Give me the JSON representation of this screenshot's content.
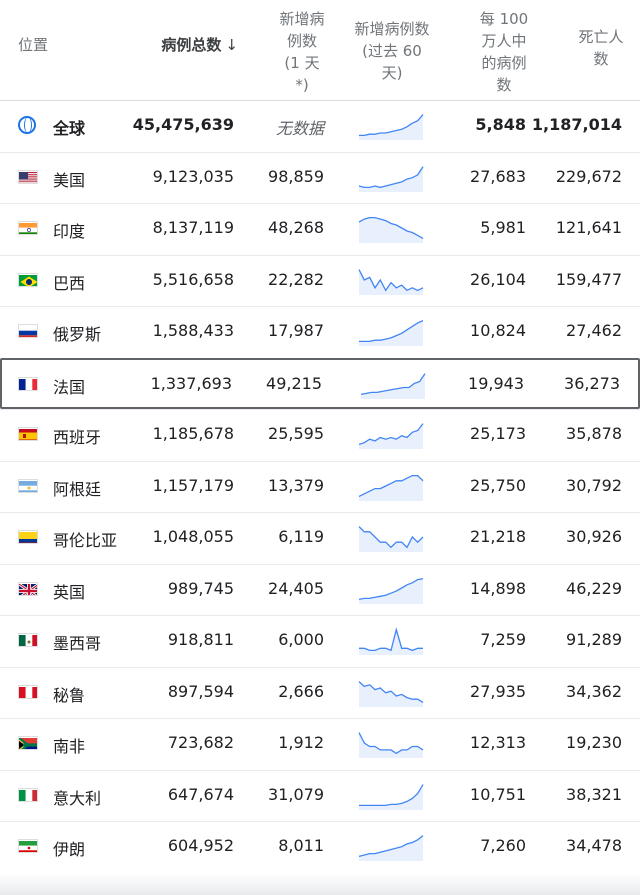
{
  "header": {
    "location": "位置",
    "total_cases": "病例总数",
    "sort_arrow": "↓",
    "new_cases": [
      "新增病",
      "例数",
      "(1 天",
      "*)"
    ],
    "trend": [
      "新增病例数",
      "(过去 60",
      "天)"
    ],
    "per_million": [
      "每 100",
      "万人中",
      "的病例",
      "数"
    ],
    "deaths": [
      "死亡人",
      "数"
    ]
  },
  "rows": [
    {
      "name": "全球",
      "flag": "globe-icon",
      "total": "45,475,639",
      "new": "无数据",
      "per_million": "5,848",
      "deaths": "1,187,014",
      "trend": [
        10,
        10,
        11,
        11,
        12,
        12,
        13,
        14,
        15,
        17,
        20,
        22,
        27
      ]
    },
    {
      "name": "美国",
      "flag": "us-flag-icon",
      "total": "9,123,035",
      "new": "98,859",
      "per_million": "27,683",
      "deaths": "229,672",
      "trend": [
        10,
        9,
        9,
        10,
        9,
        10,
        11,
        12,
        13,
        15,
        16,
        18,
        24
      ]
    },
    {
      "name": "印度",
      "flag": "india-flag-icon",
      "total": "8,137,119",
      "new": "48,268",
      "per_million": "5,981",
      "deaths": "121,641",
      "trend": [
        20,
        22,
        23,
        23,
        22,
        21,
        19,
        18,
        16,
        14,
        13,
        11,
        9
      ]
    },
    {
      "name": "巴西",
      "flag": "brazil-flag-icon",
      "total": "5,516,658",
      "new": "22,282",
      "per_million": "26,104",
      "deaths": "159,477",
      "trend": [
        20,
        16,
        17,
        13,
        16,
        12,
        15,
        13,
        14,
        12,
        13,
        12,
        13
      ]
    },
    {
      "name": "俄罗斯",
      "flag": "russia-flag-icon",
      "total": "1,588,433",
      "new": "17,987",
      "per_million": "10,824",
      "deaths": "27,462",
      "trend": [
        6,
        6,
        6,
        7,
        7,
        8,
        9,
        11,
        13,
        16,
        19,
        22,
        24
      ]
    },
    {
      "name": "法国",
      "flag": "france-flag-icon",
      "total": "1,337,693",
      "new": "49,215",
      "per_million": "19,943",
      "deaths": "36,273",
      "trend": [
        5,
        6,
        7,
        7,
        8,
        9,
        10,
        11,
        12,
        12,
        16,
        18,
        26
      ]
    },
    {
      "name": "西班牙",
      "flag": "spain-flag-icon",
      "total": "1,185,678",
      "new": "25,595",
      "per_million": "25,173",
      "deaths": "35,878",
      "trend": [
        10,
        11,
        13,
        12,
        14,
        13,
        14,
        13,
        15,
        14,
        17,
        18,
        22
      ]
    },
    {
      "name": "阿根廷",
      "flag": "argentina-flag-icon",
      "total": "1,157,179",
      "new": "13,379",
      "per_million": "25,750",
      "deaths": "30,792",
      "trend": [
        12,
        13,
        14,
        15,
        15,
        16,
        17,
        18,
        18,
        19,
        20,
        20,
        18
      ]
    },
    {
      "name": "哥伦比亚",
      "flag": "colombia-flag-icon",
      "total": "1,048,055",
      "new": "6,119",
      "per_million": "21,218",
      "deaths": "30,926",
      "trend": [
        18,
        17,
        17,
        16,
        15,
        15,
        14,
        15,
        15,
        14,
        16,
        15,
        16
      ]
    },
    {
      "name": "英国",
      "flag": "uk-flag-icon",
      "total": "989,745",
      "new": "24,405",
      "per_million": "14,898",
      "deaths": "46,229",
      "trend": [
        4,
        5,
        5,
        6,
        7,
        8,
        10,
        12,
        15,
        18,
        20,
        23,
        24
      ]
    },
    {
      "name": "墨西哥",
      "flag": "mexico-flag-icon",
      "total": "918,811",
      "new": "6,000",
      "per_million": "7,259",
      "deaths": "91,289",
      "trend": [
        13,
        13,
        12,
        12,
        13,
        13,
        12,
        22,
        13,
        13,
        12,
        13,
        13
      ]
    },
    {
      "name": "秘鲁",
      "flag": "peru-flag-icon",
      "total": "897,594",
      "new": "2,666",
      "per_million": "27,935",
      "deaths": "34,362",
      "trend": [
        22,
        19,
        20,
        17,
        18,
        15,
        16,
        13,
        14,
        12,
        11,
        11,
        9
      ]
    },
    {
      "name": "南非",
      "flag": "south-africa-flag-icon",
      "total": "723,682",
      "new": "1,912",
      "per_million": "12,313",
      "deaths": "19,230",
      "trend": [
        16,
        13,
        12,
        12,
        11,
        11,
        11,
        10,
        11,
        11,
        12,
        12,
        11
      ]
    },
    {
      "name": "意大利",
      "flag": "italy-flag-icon",
      "total": "647,674",
      "new": "31,079",
      "per_million": "10,751",
      "deaths": "38,321",
      "trend": [
        3,
        3,
        3,
        3,
        3,
        3,
        4,
        4,
        5,
        7,
        10,
        15,
        24
      ]
    },
    {
      "name": "伊朗",
      "flag": "iran-flag-icon",
      "total": "604,952",
      "new": "8,011",
      "per_million": "7,260",
      "deaths": "34,478",
      "trend": [
        8,
        9,
        10,
        10,
        11,
        12,
        13,
        14,
        15,
        17,
        18,
        20,
        23
      ]
    }
  ]
}
